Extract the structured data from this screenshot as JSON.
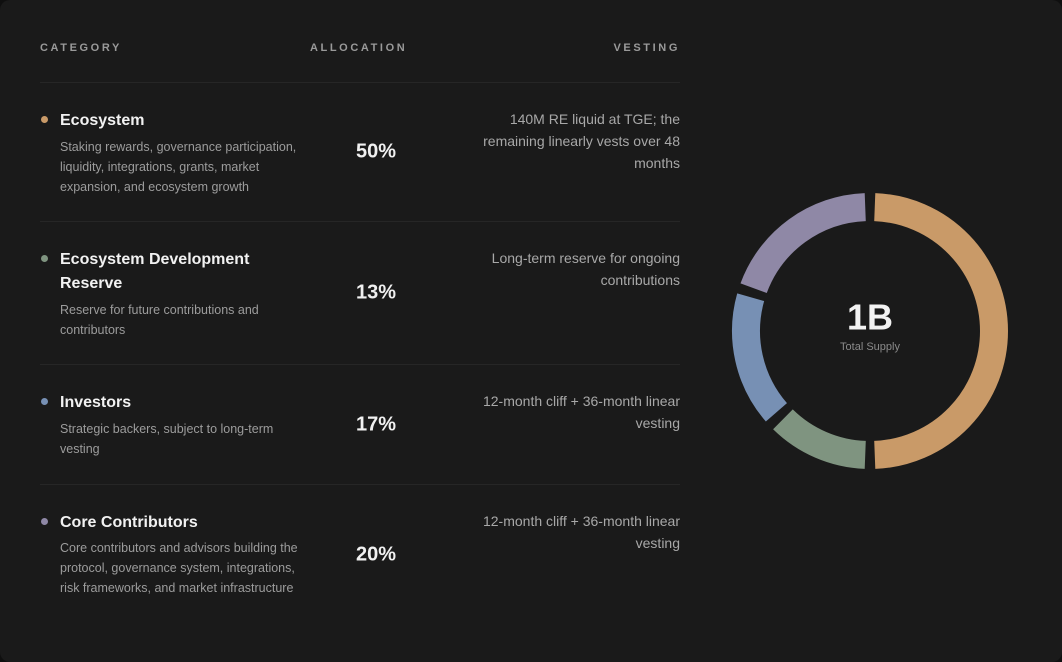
{
  "table": {
    "headers": [
      "CATEGORY",
      "ALLOCATION",
      "VESTING"
    ],
    "rows": [
      {
        "name": "Ecosystem",
        "description": "Staking rewards, governance participation, liquidity, integrations, grants, market expansion, and ecosystem growth",
        "allocation": "50%",
        "vesting": "140M RE liquid at TGE; the remaining linearly vests over 48 months"
      },
      {
        "name": "Ecosystem Development Reserve",
        "description": "Reserve for future contributions and contributors",
        "allocation": "13%",
        "vesting": "Long-term reserve for ongoing contributions"
      },
      {
        "name": "Investors",
        "description": "Strategic backers, subject to long-term vesting",
        "allocation": "17%",
        "vesting": "12-month cliff + 36-month linear vesting"
      },
      {
        "name": "Core Contributors",
        "description": "Core contributors and advisors building the protocol, governance system, integrations, risk frameworks, and market infrastructure",
        "allocation": "20%",
        "vesting": "12-month cliff + 36-month linear vesting"
      }
    ]
  },
  "chart_data": {
    "type": "donut",
    "center_value": "1B",
    "center_label": "Total Supply",
    "values": [
      50,
      13,
      17,
      20
    ],
    "colors": [
      "#c99a68",
      "#7f9480",
      "#7790b4",
      "#8f88a6"
    ]
  }
}
